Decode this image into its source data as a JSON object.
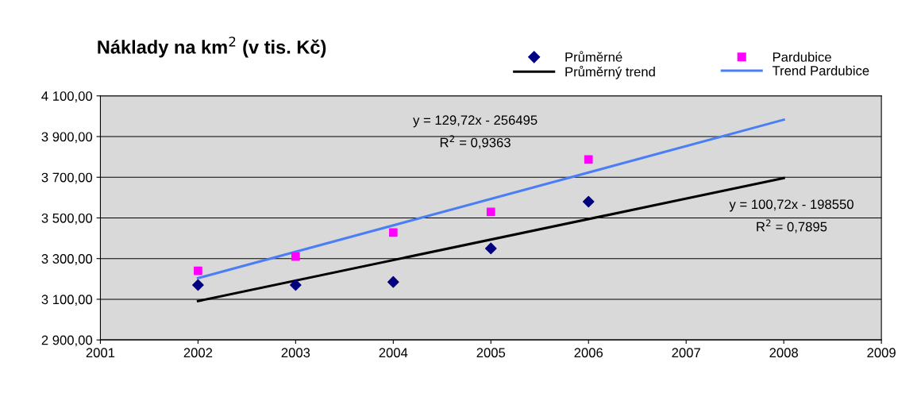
{
  "chart_data": {
    "type": "scatter",
    "title": "Náklady na km$^{2}$ (v tis. Kč)",
    "series": [
      {
        "name": "Průměrné",
        "color": "#000080",
        "marker": "diamond",
        "x": [
          2002,
          2003,
          2004,
          2005,
          2006
        ],
        "values": [
          3170,
          3170,
          3185,
          3350,
          3580
        ]
      },
      {
        "name": "Pardubice",
        "color": "#ff00ff",
        "marker": "square",
        "x": [
          2002,
          2003,
          2004,
          2005,
          2006
        ],
        "values": [
          3240,
          3310,
          3428,
          3530,
          3787
        ]
      },
      {
        "name": "Průměrný trend",
        "type": "line",
        "color": "#000000",
        "marker": "none",
        "line_style": "solid",
        "x": [
          2002,
          2008
        ],
        "values": [
          3091,
          3696
        ]
      },
      {
        "name": "Trend Pardubice",
        "type": "line",
        "color": "#4a7ef5",
        "marker": "none",
        "line_style": "solid",
        "x": [
          2002,
          2008
        ],
        "values": [
          3204,
          3983
        ]
      }
    ],
    "annotations": [
      "y = 129,72x - 256495\nR$^{2}$ = 0,9363",
      "y = 100,72x - 198550\nR$^{2}$ = 0,7895"
    ],
    "xlim": [
      2001,
      2009
    ],
    "xticks": [
      2001,
      2002,
      2003,
      2004,
      2005,
      2006,
      2007,
      2008,
      2009
    ],
    "ylim": [
      2900,
      4100
    ],
    "yticks": [
      {
        "value": 2900,
        "label": "2 900,00"
      },
      {
        "value": 3100,
        "label": "3 100,00"
      },
      {
        "value": 3300,
        "label": "3 300,00"
      },
      {
        "value": 3500,
        "label": "3 500,00"
      },
      {
        "value": 3700,
        "label": "3 700,00"
      },
      {
        "value": 3900,
        "label": "3 900,00"
      },
      {
        "value": 4100,
        "label": "4 100,00"
      }
    ],
    "grid": "y",
    "legend": "top right"
  }
}
